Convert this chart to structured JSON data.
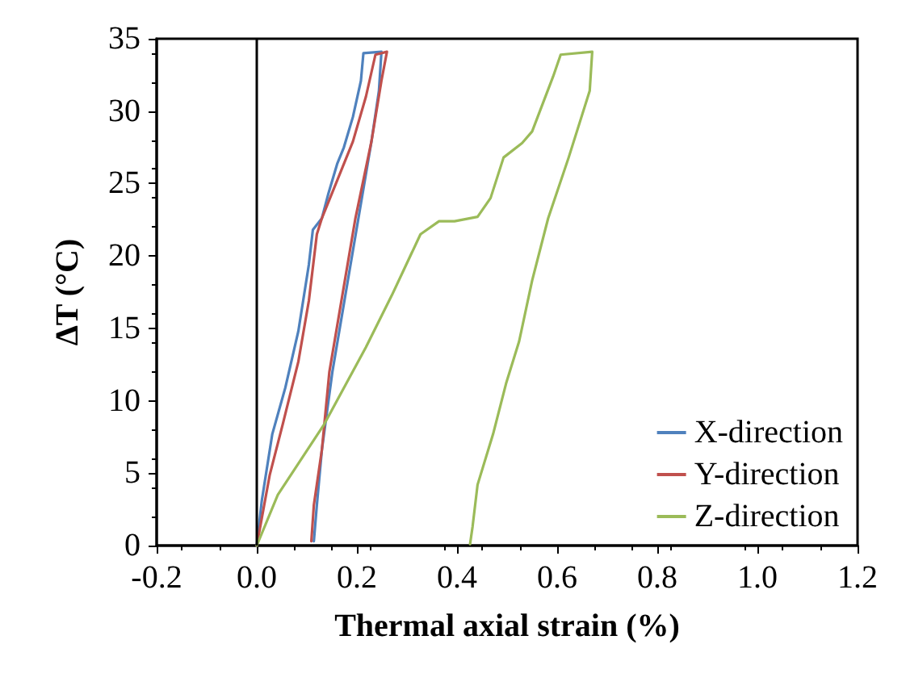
{
  "chart_data": {
    "type": "line",
    "xlabel": "Thermal axial strain (%)",
    "ylabel": "ΔT (°C)",
    "xlim": [
      -0.2,
      1.2
    ],
    "xticks": [
      {
        "value": -0.2,
        "label": "-0.2"
      },
      {
        "value": 0,
        "label": "0.0"
      },
      {
        "value": 0.2,
        "label": "0.2"
      },
      {
        "value": 0.4,
        "label": "0.4"
      },
      {
        "value": 0.6,
        "label": "0.6"
      },
      {
        "value": 0.8,
        "label": "0.8"
      },
      {
        "value": 1,
        "label": "1.0"
      },
      {
        "value": 1.2,
        "label": "1.2"
      }
    ],
    "ylim": [
      0,
      35
    ],
    "yticks": [
      0,
      5,
      10,
      15,
      20,
      25,
      30,
      35
    ],
    "grid": false,
    "legend": "bottom right",
    "marker": "none",
    "line_style": "solid",
    "ref_lines": [
      {
        "axis": "x",
        "value": 0,
        "color": "#000000"
      }
    ],
    "series": [
      {
        "name": "X-direction",
        "color": "#4f81bd",
        "x": [
          0,
          0.01,
          0.031,
          0.057,
          0.083,
          0.104,
          0.112,
          0.13,
          0.143,
          0.161,
          0.174,
          0.192,
          0.208,
          0.213,
          0.249,
          0.244,
          0.229,
          0.203,
          0.177,
          0.151,
          0.13,
          0.12,
          0.114
        ],
        "values": [
          0,
          3.1,
          7.7,
          10.9,
          14.8,
          19.4,
          21.8,
          22.6,
          24.3,
          26.4,
          27.5,
          29.6,
          32.1,
          34,
          34.1,
          31.4,
          27.9,
          22.6,
          17.3,
          12,
          6.6,
          2.8,
          0.3
        ]
      },
      {
        "name": "Y-direction",
        "color": "#c0504d",
        "x": [
          0,
          0.026,
          0.052,
          0.083,
          0.104,
          0.12,
          0.13,
          0.171,
          0.192,
          0.218,
          0.237,
          0.26,
          0.249,
          0.229,
          0.197,
          0.171,
          0.145,
          0.13,
          0.114,
          0.109
        ],
        "values": [
          0,
          4.9,
          8.4,
          12.7,
          16.9,
          21.5,
          22.6,
          26.1,
          27.9,
          31,
          33.9,
          34.1,
          32.1,
          27.9,
          22.6,
          17.3,
          12,
          6.6,
          2.8,
          0.3
        ]
      },
      {
        "name": "Z-direction",
        "color": "#9bbb59",
        "x": [
          0,
          0.042,
          0.135,
          0.218,
          0.27,
          0.327,
          0.364,
          0.395,
          0.441,
          0.467,
          0.493,
          0.53,
          0.55,
          0.592,
          0.607,
          0.67,
          0.665,
          0.623,
          0.582,
          0.55,
          0.524,
          0.498,
          0.472,
          0.441,
          0.431,
          0.426
        ],
        "values": [
          0,
          3.5,
          8.4,
          13.7,
          17.3,
          21.5,
          22.4,
          22.4,
          22.7,
          24,
          26.8,
          27.8,
          28.6,
          32.4,
          33.9,
          34.1,
          31.4,
          26.8,
          22.6,
          18.3,
          14.1,
          11.2,
          7.7,
          4.2,
          1.3,
          0.1
        ]
      }
    ]
  }
}
